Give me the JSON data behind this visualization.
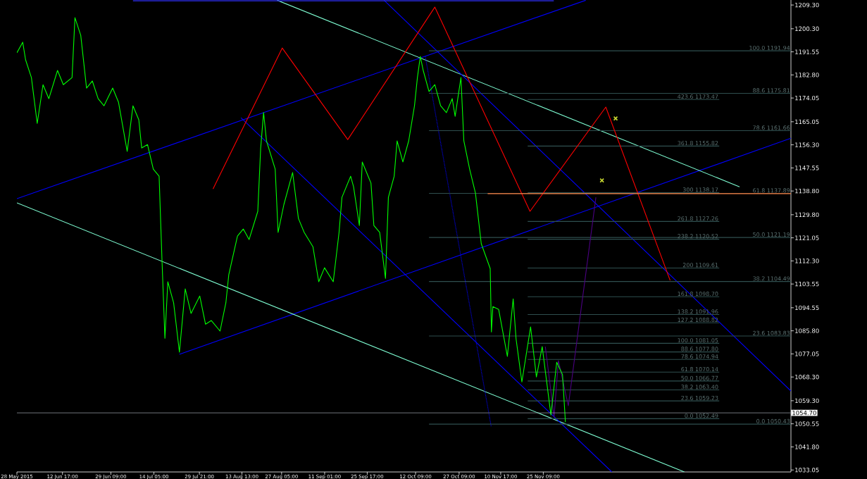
{
  "chart_data": {
    "type": "line",
    "xlim": [
      "2015-05-28",
      "2016-02-18T17:00"
    ],
    "xticks": [
      {
        "value": "2015-05-28",
        "label": "28 May 2015"
      },
      {
        "value": "2015-06-12T17:00",
        "label": "12 Jun 17:00"
      },
      {
        "value": "2015-06-29T09:00",
        "label": "29 Jun 09:00"
      },
      {
        "value": "2015-07-14T05:00",
        "label": "14 Jul 05:00"
      },
      {
        "value": "2015-07-29T21:00",
        "label": "29 Jul 21:00"
      },
      {
        "value": "2015-08-13T13:00",
        "label": "13 Aug 13:00"
      },
      {
        "value": "2015-08-27T05:00",
        "label": "27 Aug 05:00"
      },
      {
        "value": "2015-09-11T01:00",
        "label": "11 Sep 01:00"
      },
      {
        "value": "2015-09-25T17:00",
        "label": "25 Sep 17:00"
      },
      {
        "value": "2015-10-12T09:00",
        "label": "12 Oct 09:00"
      },
      {
        "value": "2015-10-27T09:00",
        "label": "27 Oct 09:00"
      },
      {
        "value": "2015-11-10T17:00",
        "label": "10 Nov 17:00"
      },
      {
        "value": "2015-11-25T09:00",
        "label": "25 Nov 09:00"
      }
    ],
    "ylim": [
      1032.3,
      1211.2
    ],
    "yticks": [
      {
        "value": 1033.05,
        "label": "1033.05"
      },
      {
        "value": 1041.8,
        "label": "1041.80"
      },
      {
        "value": 1050.55,
        "label": "1050.55"
      },
      {
        "value": 1059.3,
        "label": "1059.30"
      },
      {
        "value": 1068.3,
        "label": "1068.30"
      },
      {
        "value": 1077.05,
        "label": "1077.05"
      },
      {
        "value": 1085.8,
        "label": "1085.80"
      },
      {
        "value": 1094.55,
        "label": "1094.55"
      },
      {
        "value": 1103.55,
        "label": "1103.55"
      },
      {
        "value": 1112.3,
        "label": "1112.30"
      },
      {
        "value": 1121.05,
        "label": "1121.05"
      },
      {
        "value": 1129.8,
        "label": "1129.80"
      },
      {
        "value": 1138.8,
        "label": "1138.80"
      },
      {
        "value": 1147.55,
        "label": "1147.55"
      },
      {
        "value": 1156.3,
        "label": "1156.30"
      },
      {
        "value": 1165.05,
        "label": "1165.05"
      },
      {
        "value": 1174.05,
        "label": "1174.05"
      },
      {
        "value": 1182.8,
        "label": "1182.80"
      },
      {
        "value": 1191.55,
        "label": "1191.55"
      },
      {
        "value": 1200.3,
        "label": "1200.30"
      },
      {
        "value": 1209.3,
        "label": "1209.30"
      }
    ],
    "series": [
      {
        "color": "#0000ff",
        "x": [
          "2015-05-28",
          "2015-12-10"
        ],
        "values": [
          1135.9,
          1211.1
        ]
      },
      {
        "color": "#0000ff",
        "x": [
          "2015-07-23",
          "2016-02-18T17:00"
        ],
        "values": [
          1076.9,
          1158.8
        ]
      },
      {
        "color": "#7fffd4",
        "x": [
          "2015-05-28",
          "2016-01-13"
        ],
        "values": [
          1134.3,
          1032.3
        ]
      },
      {
        "color": "#7fffd4",
        "x": [
          "2015-08-25T17:00",
          "2016-02-01"
        ],
        "values": [
          1211.1,
          1140.4
        ]
      },
      {
        "color": "#0000ff",
        "x": [
          "2015-10-01T12:00",
          "2016-02-18T17:00"
        ],
        "values": [
          1211.1,
          1063.0
        ]
      },
      {
        "color": "#0000ff",
        "x": [
          "2015-08-13T05:00",
          "2015-12-19"
        ],
        "values": [
          1166.6,
          1032.3
        ]
      },
      {
        "color": "#0000ff",
        "line_style": "dotted",
        "x": [
          "2015-10-15T17:00",
          "2015-11-07T10:00"
        ],
        "values": [
          1189.8,
          1049.6
        ]
      },
      {
        "color": "#3030ff",
        "x": [
          "2015-07-07",
          "2015-11-29"
        ],
        "values": [
          1210.9,
          1210.9
        ]
      },
      {
        "color": "#2f4f4f",
        "x": [
          "2015-10-17",
          "2016-02-18T17:00"
        ],
        "values": [
          1191.94,
          1191.94
        ]
      },
      {
        "color": "#2f4f4f",
        "x": [
          "2015-10-17",
          "2016-02-18T17:00"
        ],
        "values": [
          1175.81,
          1175.81
        ]
      },
      {
        "color": "#2f4f4f",
        "x": [
          "2015-10-17",
          "2016-02-18T17:00"
        ],
        "values": [
          1161.66,
          1161.66
        ]
      },
      {
        "color": "#2f4f4f",
        "x": [
          "2015-10-17",
          "2016-02-18T17:00"
        ],
        "values": [
          1137.89,
          1137.89
        ]
      },
      {
        "color": "#2f4f4f",
        "x": [
          "2015-10-17",
          "2016-02-18T17:00"
        ],
        "values": [
          1121.19,
          1121.19
        ]
      },
      {
        "color": "#2f4f4f",
        "x": [
          "2015-10-17",
          "2016-02-18T17:00"
        ],
        "values": [
          1104.49,
          1104.49
        ]
      },
      {
        "color": "#2f4f4f",
        "x": [
          "2015-10-17",
          "2016-02-18T17:00"
        ],
        "values": [
          1083.83,
          1083.83
        ]
      },
      {
        "color": "#2f4f4f",
        "x": [
          "2015-10-17",
          "2016-02-18T17:00"
        ],
        "values": [
          1050.43,
          1050.43
        ]
      },
      {
        "color": "#2f4f4f",
        "x": [
          "2015-11-20",
          "2016-01-25"
        ],
        "values": [
          1173.47,
          1173.47
        ]
      },
      {
        "color": "#2f4f4f",
        "x": [
          "2015-11-20",
          "2016-01-25"
        ],
        "values": [
          1155.82,
          1155.82
        ]
      },
      {
        "color": "#2f4f4f",
        "x": [
          "2015-11-20",
          "2016-01-25"
        ],
        "values": [
          1138.17,
          1138.17
        ]
      },
      {
        "color": "#2f4f4f",
        "x": [
          "2015-11-20",
          "2016-01-25"
        ],
        "values": [
          1127.26,
          1127.26
        ]
      },
      {
        "color": "#2f4f4f",
        "x": [
          "2015-11-20",
          "2016-01-25"
        ],
        "values": [
          1120.52,
          1120.52
        ]
      },
      {
        "color": "#2f4f4f",
        "x": [
          "2015-11-20",
          "2016-01-25"
        ],
        "values": [
          1109.61,
          1109.61
        ]
      },
      {
        "color": "#2f4f4f",
        "x": [
          "2015-11-20",
          "2016-01-25"
        ],
        "values": [
          1098.7,
          1098.7
        ]
      },
      {
        "color": "#2f4f4f",
        "x": [
          "2015-11-20",
          "2016-01-25"
        ],
        "values": [
          1091.96,
          1091.96
        ]
      },
      {
        "color": "#2f4f4f",
        "x": [
          "2015-11-20",
          "2016-01-25"
        ],
        "values": [
          1088.82,
          1088.82
        ]
      },
      {
        "color": "#2f4f4f",
        "x": [
          "2015-11-20",
          "2016-01-25"
        ],
        "values": [
          1081.05,
          1081.05
        ]
      },
      {
        "color": "#2f4f4f",
        "x": [
          "2015-11-20",
          "2016-01-25"
        ],
        "values": [
          1077.8,
          1077.8
        ]
      },
      {
        "color": "#2f4f4f",
        "x": [
          "2015-11-20",
          "2016-01-25"
        ],
        "values": [
          1074.94,
          1074.94
        ]
      },
      {
        "color": "#2f4f4f",
        "x": [
          "2015-11-20",
          "2016-01-25"
        ],
        "values": [
          1070.14,
          1070.14
        ]
      },
      {
        "color": "#2f4f4f",
        "x": [
          "2015-11-20",
          "2016-01-25"
        ],
        "values": [
          1066.77,
          1066.77
        ]
      },
      {
        "color": "#2f4f4f",
        "x": [
          "2015-11-20",
          "2016-01-25"
        ],
        "values": [
          1063.4,
          1063.4
        ]
      },
      {
        "color": "#2f4f4f",
        "x": [
          "2015-11-20",
          "2016-01-25"
        ],
        "values": [
          1059.23,
          1059.23
        ]
      },
      {
        "color": "#2f4f4f",
        "x": [
          "2015-11-20",
          "2016-01-25"
        ],
        "values": [
          1052.49,
          1052.49
        ]
      },
      {
        "color": "#4b0082",
        "x": [
          "2015-11-26T02:00",
          "2015-11-29T02:00",
          "2015-11-30T14:00",
          "2015-12-04",
          "2015-12-13T12:00"
        ],
        "values": [
          1079.8,
          1053.1,
          1074.5,
          1057.4,
          1136.4
        ]
      },
      {
        "color": "#00ff00",
        "x": [
          "2015-05-28",
          "2015-05-30",
          "2015-05-31",
          "2015-06-02",
          "2015-06-04",
          "2015-06-06",
          "2015-06-08",
          "2015-06-11",
          "2015-06-13",
          "2015-06-16",
          "2015-06-17",
          "2015-06-19",
          "2015-06-21",
          "2015-06-23",
          "2015-06-25",
          "2015-06-27",
          "2015-06-30",
          "2015-07-02",
          "2015-07-05",
          "2015-07-07",
          "2015-07-09",
          "2015-07-10",
          "2015-07-12",
          "2015-07-14",
          "2015-07-16",
          "2015-07-17",
          "2015-07-18",
          "2015-07-19",
          "2015-07-21",
          "2015-07-23",
          "2015-07-25",
          "2015-07-27",
          "2015-07-30",
          "2015-08-01",
          "2015-08-03",
          "2015-08-06",
          "2015-08-08",
          "2015-08-09",
          "2015-08-12",
          "2015-08-14",
          "2015-08-16",
          "2015-08-19",
          "2015-08-20",
          "2015-08-21",
          "2015-08-22",
          "2015-08-25",
          "2015-08-26",
          "2015-08-28",
          "2015-08-31",
          "2015-09-02",
          "2015-09-04",
          "2015-09-07",
          "2015-09-09",
          "2015-09-11",
          "2015-09-14",
          "2015-09-16",
          "2015-09-17",
          "2015-09-20",
          "2015-09-21",
          "2015-09-23",
          "2015-09-24",
          "2015-09-27",
          "2015-09-28",
          "2015-09-30",
          "2015-10-02",
          "2015-10-03",
          "2015-10-05",
          "2015-10-06",
          "2015-10-08",
          "2015-10-10",
          "2015-10-12",
          "2015-10-13",
          "2015-10-14",
          "2015-10-15",
          "2015-10-17",
          "2015-10-19",
          "2015-10-21",
          "2015-10-23",
          "2015-10-25",
          "2015-10-26",
          "2015-10-28",
          "2015-10-29",
          "2015-10-31",
          "2015-11-02",
          "2015-11-04",
          "2015-11-07T02:00",
          "2015-11-07T12:00",
          "2015-11-08",
          "2015-11-10",
          "2015-11-13",
          "2015-11-15",
          "2015-11-16",
          "2015-11-18",
          "2015-11-21",
          "2015-11-23",
          "2015-11-25",
          "2015-11-28",
          "2015-11-30",
          "2015-12-02",
          "2015-12-03"
        ],
        "values": [
          1191.2,
          1195.2,
          1188.5,
          1181.8,
          1164.4,
          1179.1,
          1173.8,
          1184.5,
          1179.1,
          1181.8,
          1204.5,
          1197.8,
          1177.8,
          1180.5,
          1173.8,
          1171.1,
          1177.8,
          1172.5,
          1153.8,
          1171.1,
          1165.8,
          1155.1,
          1156.4,
          1147.1,
          1144.4,
          1112.4,
          1083.0,
          1104.4,
          1096.4,
          1077.7,
          1101.7,
          1092.4,
          1099.0,
          1088.3,
          1089.7,
          1085.7,
          1096.4,
          1107.0,
          1121.7,
          1124.4,
          1120.4,
          1131.1,
          1155.1,
          1168.5,
          1157.8,
          1147.1,
          1123.1,
          1133.7,
          1145.8,
          1128.4,
          1123.1,
          1117.7,
          1104.4,
          1109.7,
          1104.4,
          1123.1,
          1136.4,
          1144.4,
          1140.4,
          1125.7,
          1149.8,
          1141.8,
          1125.7,
          1123.1,
          1105.7,
          1136.4,
          1144.4,
          1157.8,
          1149.8,
          1157.8,
          1171.1,
          1181.8,
          1189.8,
          1184.5,
          1176.5,
          1179.1,
          1171.1,
          1168.5,
          1173.8,
          1167.1,
          1181.8,
          1157.8,
          1147.1,
          1138.0,
          1118.8,
          1109.4,
          1085.4,
          1095.0,
          1093.9,
          1076.1,
          1097.9,
          1082.7,
          1066.4,
          1087.3,
          1068.3,
          1079.8,
          1053.9,
          1073.9,
          1069.2,
          1051.2
        ]
      },
      {
        "color": "#ff0000",
        "x": [
          "2015-08-03T14:00",
          "2015-08-27T10:00",
          "2015-09-19",
          "2015-10-19",
          "2015-11-20T19:00",
          "2015-12-16T22:00",
          "2016-01-08T02:00"
        ],
        "values": [
          1139.6,
          1193.0,
          1158.3,
          1208.5,
          1131.1,
          1170.6,
          1104.9
        ]
      },
      {
        "color": "#ff8040",
        "x": [
          "2015-11-06T05:00",
          "2016-02-18T17:00"
        ],
        "values": [
          1137.8,
          1137.8
        ]
      },
      {
        "type": "scatter",
        "color": "#c8d830",
        "marker": "cross",
        "x": [
          "2015-12-20T07:00",
          "2015-12-15T14:00"
        ],
        "values": [
          1166.3,
          1142.8
        ]
      }
    ],
    "ref_lines": [
      {
        "axis": "y",
        "value": 1054.7,
        "label": "1054.70",
        "color": "#a0a8b0"
      }
    ],
    "annotations": [
      {
        "text": "100.0 1191.94",
        "x": "2016-02-18T17:00",
        "y": 1191.94
      },
      {
        "text": "88.6 1175.81",
        "x": "2016-02-18T17:00",
        "y": 1175.81
      },
      {
        "text": "78.6 1161.66",
        "x": "2016-02-18T17:00",
        "y": 1161.66
      },
      {
        "text": "61.8 1137.89",
        "x": "2016-02-18T17:00",
        "y": 1137.89
      },
      {
        "text": "50.0 1121.19",
        "x": "2016-02-18T17:00",
        "y": 1121.19
      },
      {
        "text": "38.2 1104.49",
        "x": "2016-02-18T17:00",
        "y": 1104.49
      },
      {
        "text": "23.6 1083.83",
        "x": "2016-02-18T17:00",
        "y": 1083.83
      },
      {
        "text": "0.0 1050.43",
        "x": "2016-02-18T17:00",
        "y": 1050.43
      },
      {
        "text": "423.6 1173.47",
        "x": "2016-01-25",
        "y": 1173.47
      },
      {
        "text": "361.8 1155.82",
        "x": "2016-01-25",
        "y": 1155.82
      },
      {
        "text": "300 1138.17",
        "x": "2016-01-25",
        "y": 1138.17
      },
      {
        "text": "261.8 1127.26",
        "x": "2016-01-25",
        "y": 1127.26
      },
      {
        "text": "238.2 1120.52",
        "x": "2016-01-25",
        "y": 1120.52
      },
      {
        "text": "200 1109.61",
        "x": "2016-01-25",
        "y": 1109.61
      },
      {
        "text": "161.8 1098.70",
        "x": "2016-01-25",
        "y": 1098.7
      },
      {
        "text": "138.2 1091.96",
        "x": "2016-01-25",
        "y": 1091.96
      },
      {
        "text": "127.2 1088.82",
        "x": "2016-01-25",
        "y": 1088.82
      },
      {
        "text": "100.0 1081.05",
        "x": "2016-01-25",
        "y": 1081.05
      },
      {
        "text": "88.6 1077.80",
        "x": "2016-01-25",
        "y": 1077.8
      },
      {
        "text": "78.6 1074.94",
        "x": "2016-01-25",
        "y": 1074.94
      },
      {
        "text": "61.8 1070.14",
        "x": "2016-01-25",
        "y": 1070.14
      },
      {
        "text": "50.0 1066.77",
        "x": "2016-01-25",
        "y": 1066.77
      },
      {
        "text": "38.2 1063.40",
        "x": "2016-01-25",
        "y": 1063.4
      },
      {
        "text": "23.6 1059.23",
        "x": "2016-01-25",
        "y": 1059.23
      },
      {
        "text": "0.0 1052.49",
        "x": "2016-01-25",
        "y": 1052.49
      }
    ]
  }
}
